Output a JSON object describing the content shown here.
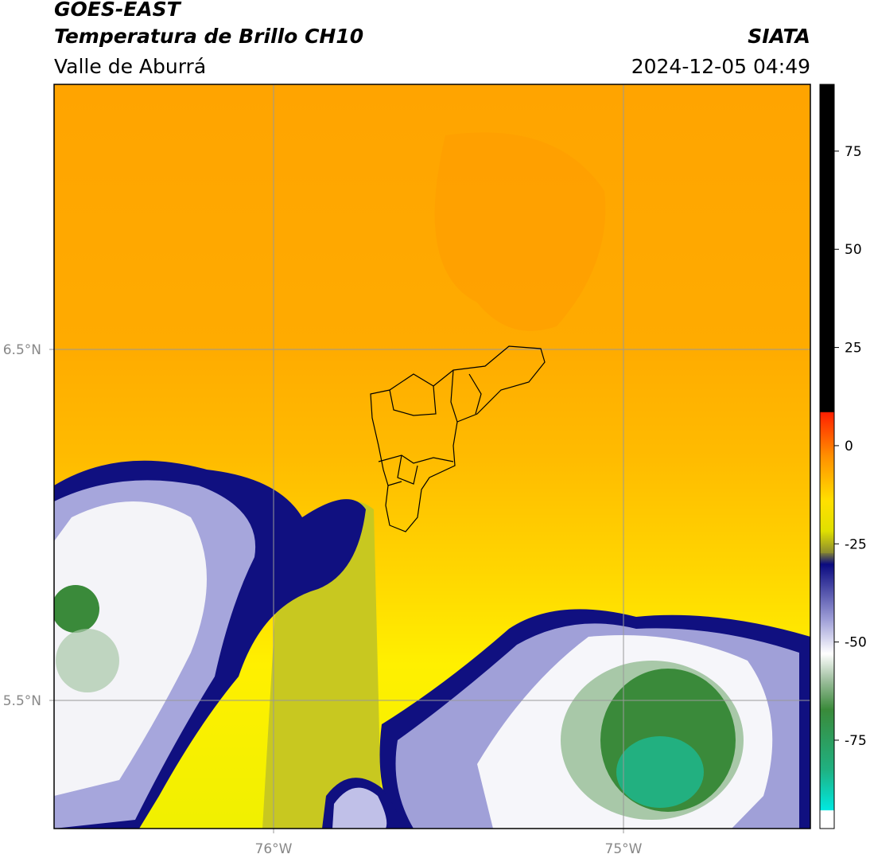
{
  "header": {
    "title": "GOES-EAST",
    "subtitle": "Temperatura de Brillo CH10",
    "region": "Valle de Aburrá",
    "source": "SIATA",
    "datetime": "2024-12-05 04:49"
  },
  "map": {
    "lat_labels": [
      "6.5°N",
      "5.5°N"
    ],
    "lon_labels": [
      "76°W",
      "75°W"
    ]
  },
  "colorbar": {
    "lim": [
      -97.5,
      92
    ],
    "ticks": [
      75,
      50,
      25,
      0,
      -25,
      -50,
      -75
    ]
  }
}
